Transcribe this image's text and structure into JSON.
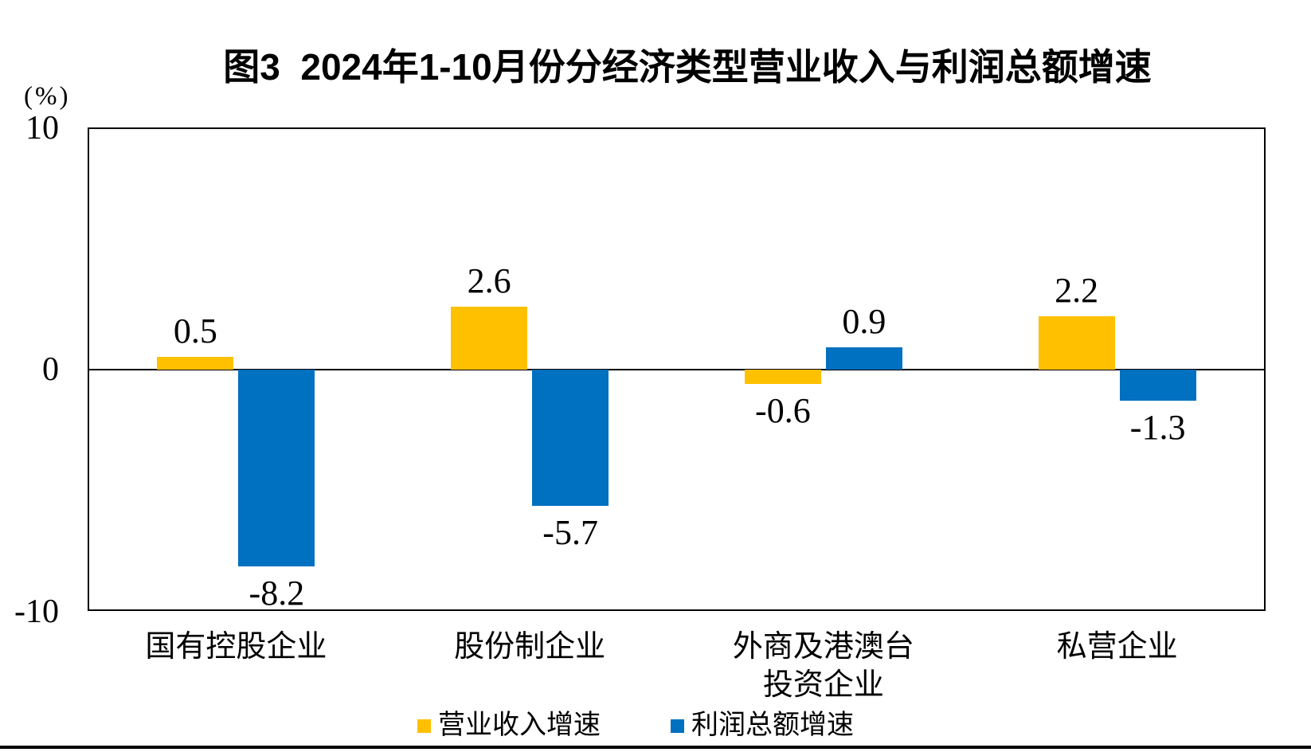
{
  "title": "图3  2024年1-10月份分经济类型营业收入与利润总额增速",
  "y_axis": {
    "unit_label": "(%)",
    "ticks": [
      "10",
      "0",
      "-10"
    ],
    "max": 10,
    "min": -10
  },
  "legend": [
    {
      "label": "营业收入增速",
      "color": "#FFC000"
    },
    {
      "label": "利润总额增速",
      "color": "#0070C0"
    }
  ],
  "chart_data": {
    "type": "bar",
    "title": "图3 2024年1-10月份分经济类型营业收入与利润总额增速",
    "categories": [
      "国有控股企业",
      "股份制企业",
      "外商及港澳台投资企业",
      "私营企业"
    ],
    "category_display": [
      [
        "国有控股企业"
      ],
      [
        "股份制企业"
      ],
      [
        "外商及港澳台",
        "投资企业"
      ],
      [
        "私营企业"
      ]
    ],
    "series": [
      {
        "name": "营业收入增速",
        "color": "#FFC000",
        "values": [
          0.5,
          2.6,
          -0.6,
          2.2
        ]
      },
      {
        "name": "利润总额增速",
        "color": "#0070C0",
        "values": [
          -8.2,
          -5.7,
          0.9,
          -1.3
        ]
      }
    ],
    "xlabel": "",
    "ylabel": "(%)",
    "ylim": [
      -10,
      10
    ],
    "grid": false,
    "zero_axis_line": true,
    "legend_position": "bottom",
    "bar_value_labels": true
  }
}
